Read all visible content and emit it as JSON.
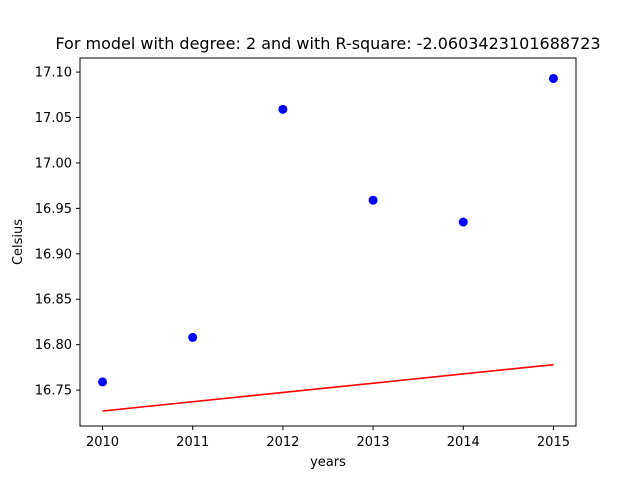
{
  "chart_data": {
    "type": "scatter",
    "title": "For model with degree: 2 and with R-square: -2.0603423101688723",
    "xlabel": "years",
    "ylabel": "Celsius",
    "xlim": [
      2009.75,
      2015.25
    ],
    "ylim": [
      16.7105,
      17.1155
    ],
    "x_ticks": [
      2010,
      2011,
      2012,
      2013,
      2014,
      2015
    ],
    "y_ticks": [
      16.75,
      16.8,
      16.85,
      16.9,
      16.95,
      17.0,
      17.05,
      17.1
    ],
    "y_tick_labels": [
      "16.75",
      "16.80",
      "16.85",
      "16.90",
      "16.95",
      "17.00",
      "17.05",
      "17.10"
    ],
    "grid": false,
    "series": [
      {
        "type": "scatter",
        "color": "#0000ff",
        "x": [
          2010,
          2011,
          2012,
          2013,
          2014,
          2015
        ],
        "y": [
          16.759,
          16.808,
          17.059,
          16.959,
          16.935,
          17.093
        ]
      },
      {
        "type": "line",
        "color": "#ff0000",
        "x": [
          2010,
          2015
        ],
        "y": [
          16.727,
          16.778
        ]
      }
    ]
  }
}
